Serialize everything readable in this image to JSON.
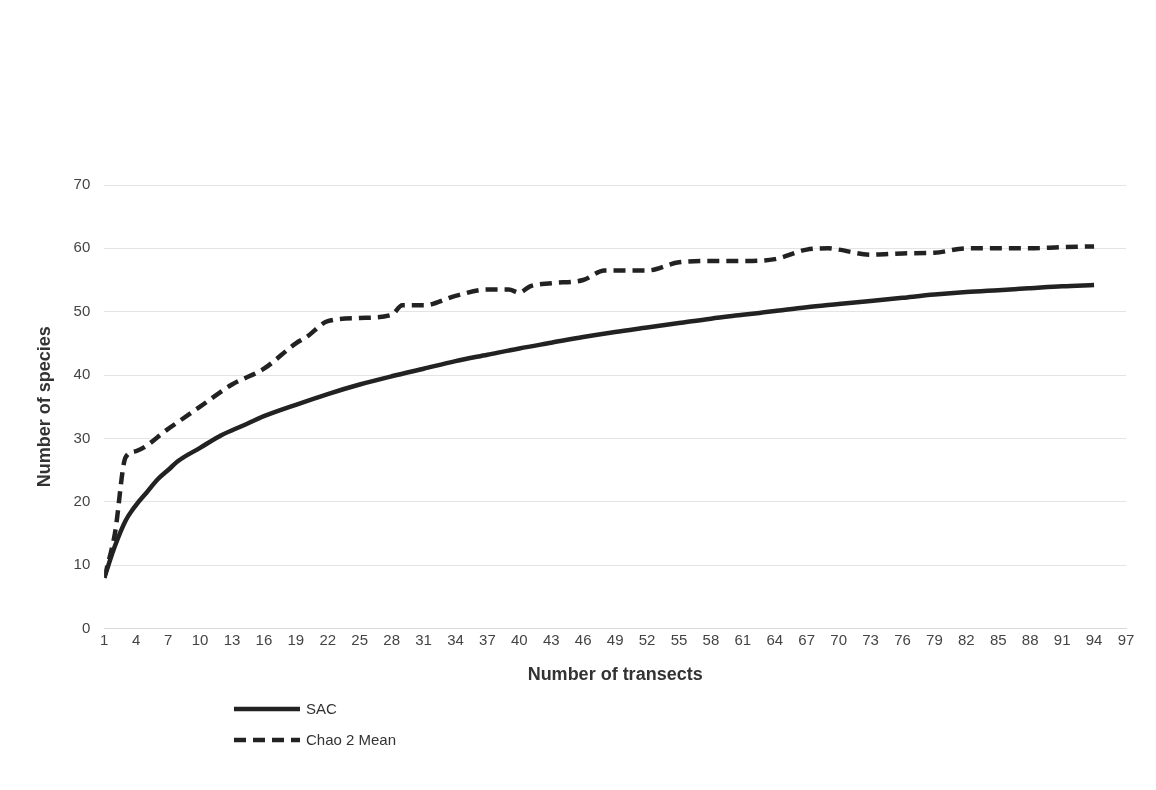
{
  "chart_data": {
    "type": "line",
    "xlabel": "Number of transects",
    "ylabel": "Number of species",
    "xlim": [
      1,
      97
    ],
    "xticks": [
      1,
      4,
      7,
      10,
      13,
      16,
      19,
      22,
      25,
      28,
      31,
      34,
      37,
      40,
      43,
      46,
      49,
      52,
      55,
      58,
      61,
      64,
      67,
      70,
      73,
      76,
      79,
      82,
      85,
      88,
      91,
      94,
      97
    ],
    "ylim": [
      0,
      70
    ],
    "yticks": [
      0,
      10,
      20,
      30,
      40,
      50,
      60,
      70
    ],
    "grid": "y",
    "legend": "bottom left",
    "marker": "none",
    "series": [
      {
        "name": "SAC",
        "color": "#222222",
        "line_style": "solid",
        "x": [
          1,
          2,
          3,
          4,
          5,
          6,
          7,
          8,
          10,
          12,
          14,
          16,
          19,
          22,
          25,
          28,
          31,
          34,
          37,
          40,
          43,
          46,
          49,
          52,
          55,
          58,
          61,
          64,
          67,
          70,
          73,
          76,
          79,
          82,
          85,
          88,
          91,
          94
        ],
        "values": [
          8,
          13,
          17,
          19.5,
          21.5,
          23.5,
          25,
          26.5,
          28.5,
          30.5,
          32,
          33.5,
          35.3,
          37,
          38.5,
          39.8,
          41,
          42.2,
          43.2,
          44.2,
          45.1,
          46,
          46.8,
          47.5,
          48.2,
          48.9,
          49.5,
          50.1,
          50.7,
          51.2,
          51.7,
          52.2,
          52.7,
          53.1,
          53.4,
          53.7,
          54,
          54.2
        ]
      },
      {
        "name": "Chao 2 Mean",
        "color": "#222222",
        "line_style": "dashed",
        "x": [
          1,
          2,
          3,
          4,
          7,
          10,
          13,
          16,
          19,
          20,
          22,
          25,
          28,
          29,
          31,
          34,
          37,
          39,
          40,
          41,
          43,
          46,
          48,
          49,
          52,
          55,
          58,
          61,
          64,
          67,
          69,
          70,
          73,
          76,
          79,
          82,
          85,
          88,
          91,
          94
        ],
        "values": [
          8,
          15,
          27,
          28,
          31.5,
          35,
          38.5,
          41,
          45,
          46,
          48.5,
          49,
          49.5,
          51,
          51,
          52.5,
          53.5,
          53.5,
          53,
          54,
          54.5,
          55,
          56.5,
          56.5,
          56.5,
          57.8,
          58,
          58,
          58.3,
          59.8,
          60,
          59.8,
          59,
          59.2,
          59.3,
          60,
          60,
          60,
          60.2,
          60.3
        ]
      }
    ]
  }
}
